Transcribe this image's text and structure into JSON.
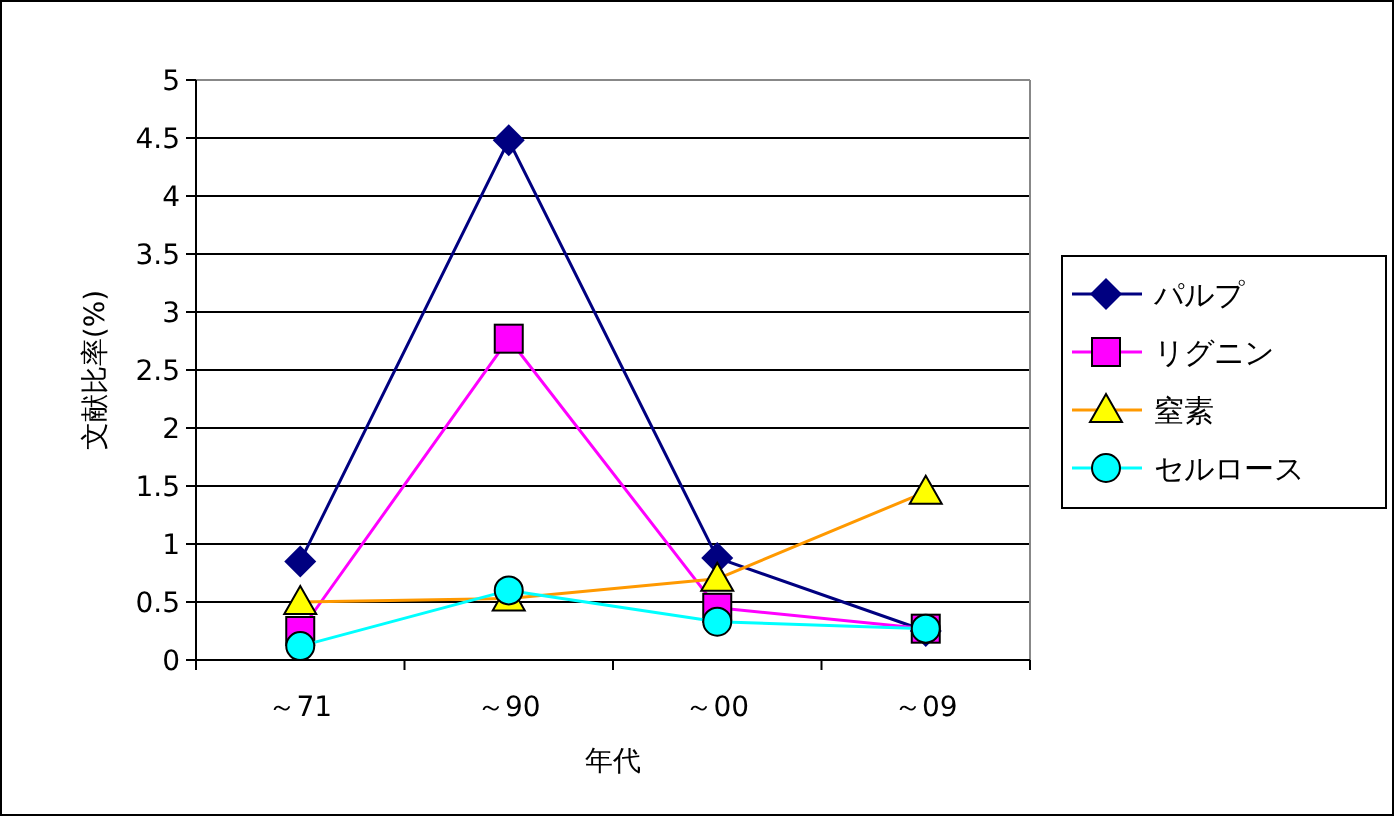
{
  "chart_data": {
    "type": "line",
    "xlabel": "年代",
    "ylabel": "文献比率(%)",
    "categories": [
      "～71",
      "～90",
      "～00",
      "～09"
    ],
    "series": [
      {
        "name": "パルプ",
        "color": "#000080",
        "marker": "diamond",
        "values": [
          0.85,
          4.48,
          0.88,
          0.25
        ]
      },
      {
        "name": "リグニン",
        "color": "#ff00ff",
        "marker": "square",
        "values": [
          0.25,
          2.77,
          0.45,
          0.27
        ]
      },
      {
        "name": "窒素",
        "color": "#ff9900",
        "marker": "triangle",
        "values": [
          0.5,
          0.53,
          0.7,
          1.45
        ]
      },
      {
        "name": "セルロース",
        "color": "#00ffff",
        "marker": "circle",
        "values": [
          0.12,
          0.6,
          0.33,
          0.27
        ]
      }
    ],
    "ylim": [
      0,
      5
    ],
    "yticks": [
      0,
      0.5,
      1,
      1.5,
      2,
      2.5,
      3,
      3.5,
      4,
      4.5,
      5
    ],
    "grid": "y",
    "legend": "right"
  }
}
